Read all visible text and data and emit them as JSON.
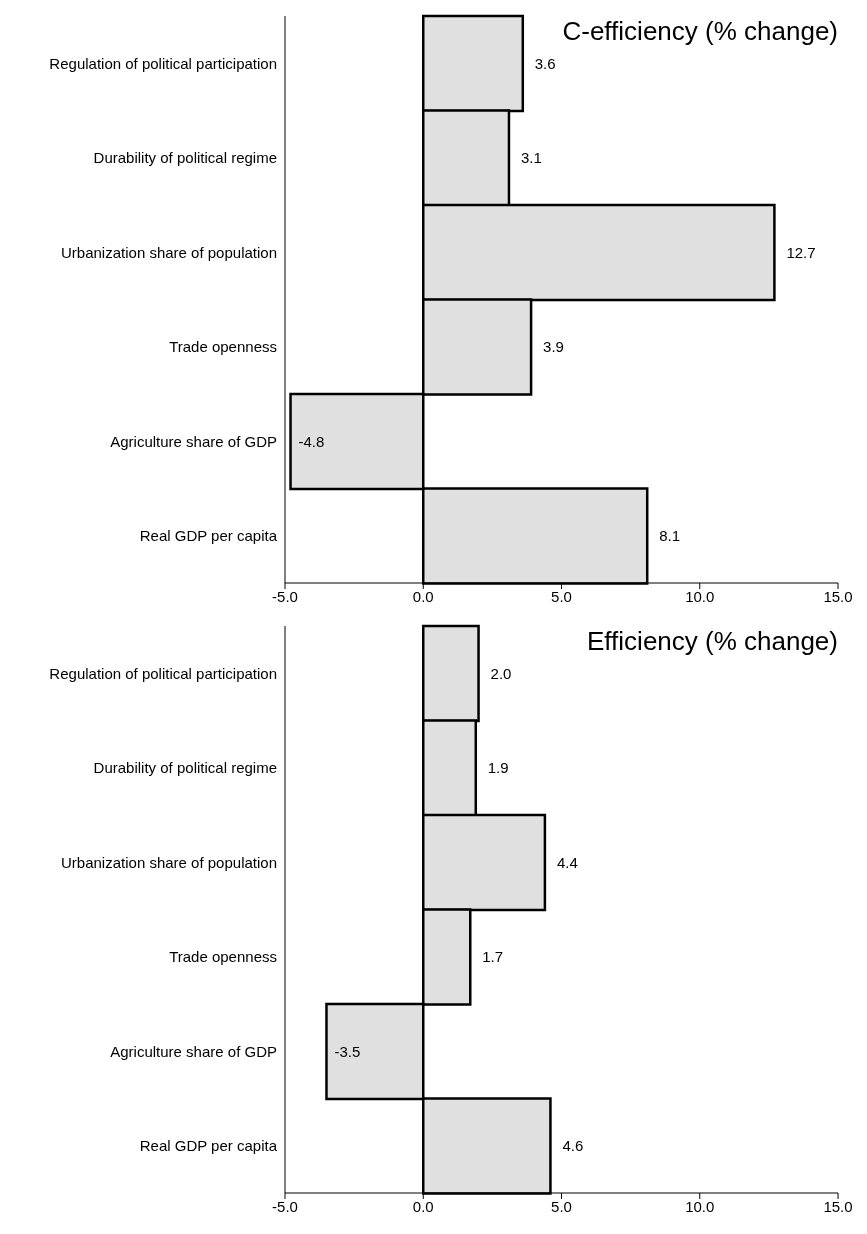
{
  "chart_data": [
    {
      "type": "bar",
      "orientation": "horizontal",
      "title": "C-efficiency (% change)",
      "categories": [
        "Regulation of political participation",
        "Durability of political regime",
        "Urbanization share of population",
        "Trade openness",
        "Agriculture share of GDP",
        "Real GDP per capita"
      ],
      "values": [
        3.6,
        3.1,
        12.7,
        3.9,
        -4.8,
        8.1
      ],
      "value_labels": [
        "3.6",
        "3.1",
        "12.7",
        "3.9",
        "-4.8",
        "8.1"
      ],
      "color": "#e0e0e0",
      "xlim": [
        -5,
        15
      ],
      "xticks": [
        {
          "value": -5,
          "label": "-5.0"
        },
        {
          "value": 0,
          "label": "0.0"
        },
        {
          "value": 5,
          "label": "5.0"
        },
        {
          "value": 10,
          "label": "10.0"
        },
        {
          "value": 15,
          "label": "15.0"
        }
      ],
      "grid": false,
      "legend": false
    },
    {
      "type": "bar",
      "orientation": "horizontal",
      "title": "Efficiency (% change)",
      "categories": [
        "Regulation of political participation",
        "Durability of political regime",
        "Urbanization share of population",
        "Trade openness",
        "Agriculture share of GDP",
        "Real GDP per capita"
      ],
      "values": [
        2.0,
        1.9,
        4.4,
        1.7,
        -3.5,
        4.6
      ],
      "value_labels": [
        "2.0",
        "1.9",
        "4.4",
        "1.7",
        "-3.5",
        "4.6"
      ],
      "color": "#e0e0e0",
      "xlim": [
        -5,
        15
      ],
      "xticks": [
        {
          "value": -5,
          "label": "-5.0"
        },
        {
          "value": 0,
          "label": "0.0"
        },
        {
          "value": 5,
          "label": "5.0"
        },
        {
          "value": 10,
          "label": "10.0"
        },
        {
          "value": 15,
          "label": "15.0"
        }
      ],
      "grid": false,
      "legend": false
    }
  ]
}
